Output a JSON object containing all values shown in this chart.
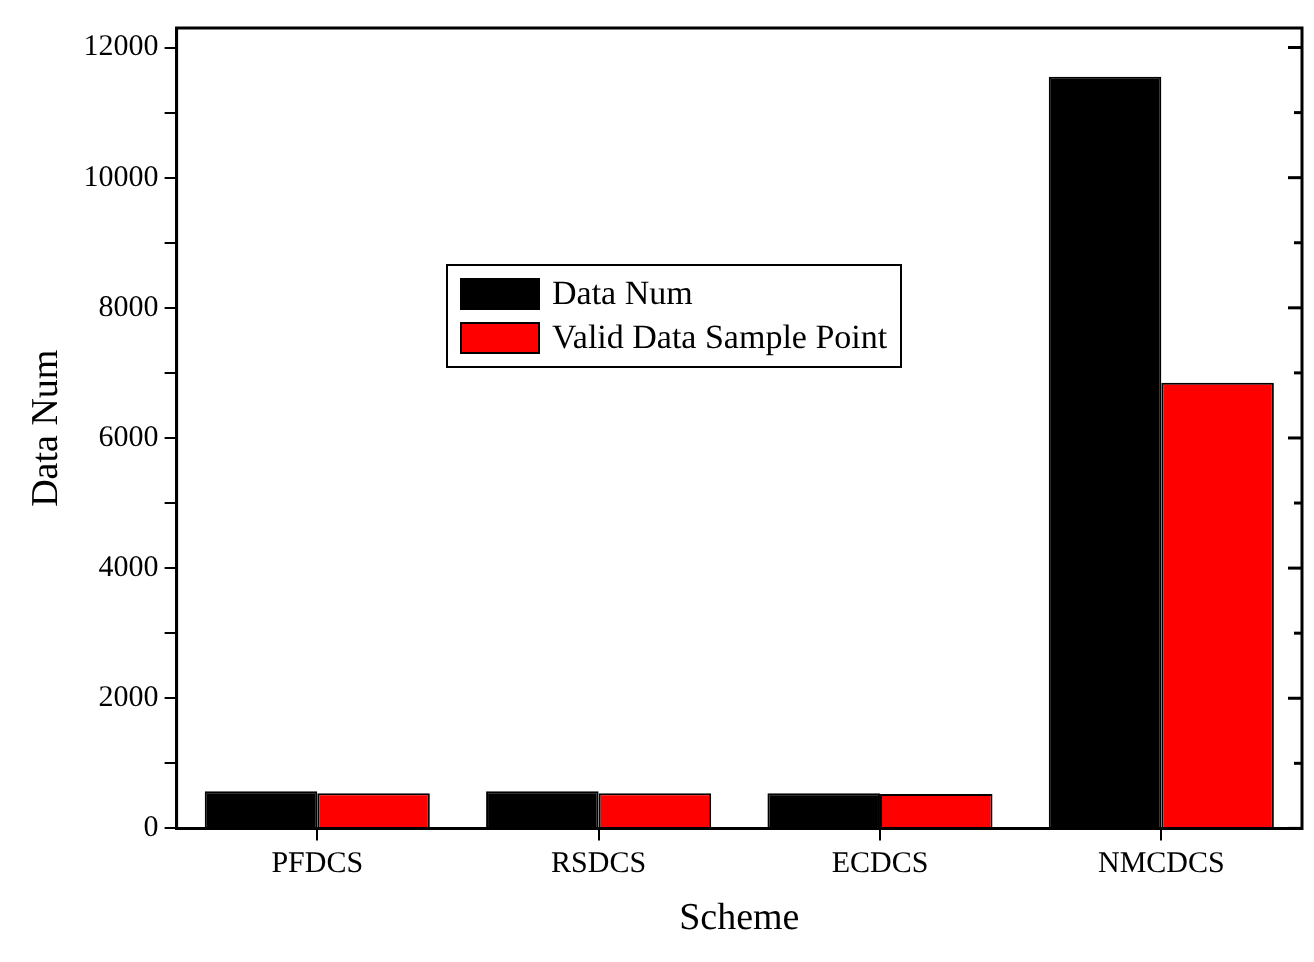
{
  "chart_data": {
    "type": "bar",
    "xlabel": "Scheme",
    "ylabel": "Data Num",
    "categories": [
      "PFDCS",
      "RSDCS",
      "ECDCS",
      "NMCDCS"
    ],
    "series": [
      {
        "name": "Data Num",
        "color": "#000000",
        "values": [
          570,
          570,
          540,
          11550
        ]
      },
      {
        "name": "Valid Data Sample Point",
        "color": "#ff0000",
        "values": [
          540,
          540,
          530,
          6850
        ]
      }
    ],
    "ylim": [
      0,
      12300
    ],
    "yticks": [
      0,
      {
        "value": 1000,
        "label": null
      },
      2000,
      {
        "value": 3000,
        "label": null
      },
      4000,
      {
        "value": 5000,
        "label": null
      },
      6000,
      {
        "value": 7000,
        "label": null
      },
      8000,
      {
        "value": 9000,
        "label": null
      },
      10000,
      {
        "value": 11000,
        "label": null
      },
      12000
    ],
    "grid": false,
    "legend": "left"
  }
}
